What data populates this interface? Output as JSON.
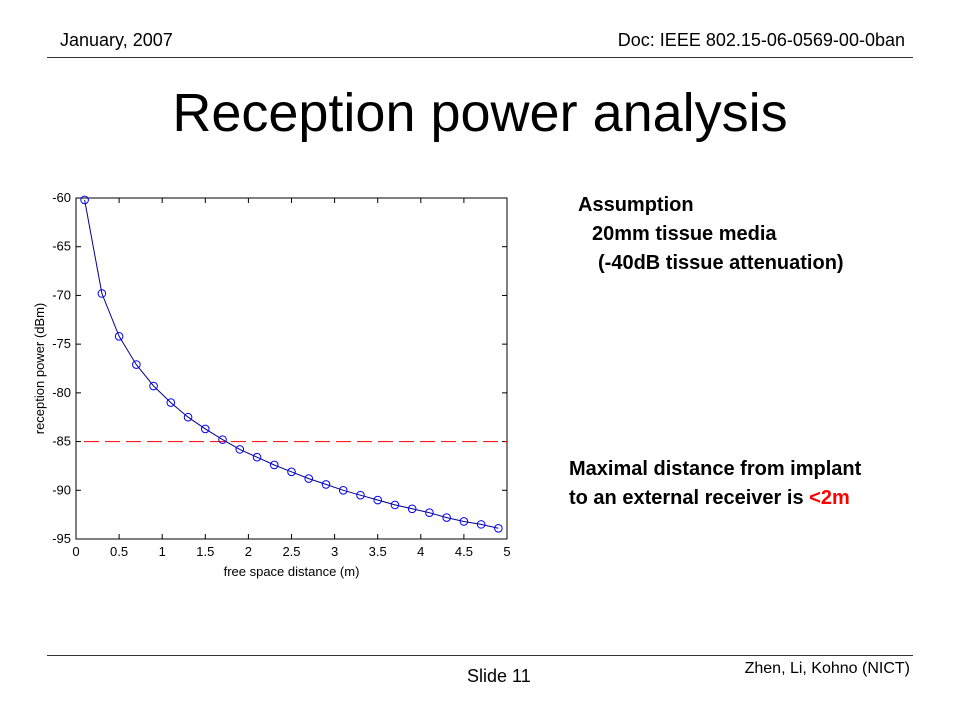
{
  "header": {
    "date": "January, 2007",
    "doc": "Doc: IEEE 802.15-06-0569-00-0ban"
  },
  "title": "Reception power analysis",
  "assumption": {
    "heading": "Assumption",
    "line1": "20mm tissue media",
    "line2": "(-40dB tissue attenuation)"
  },
  "conclusion": {
    "line1": "Maximal distance from implant",
    "line2_prefix": "to an external receiver is ",
    "line2_highlight": "<2m"
  },
  "footer": {
    "author": "Zhen, Li, Kohno (NICT)",
    "slide": "Slide 11"
  },
  "colors": {
    "curve": "#00008b",
    "marker": "#0000ff",
    "threshold": "#ff0000",
    "highlight": "#ff0000"
  },
  "chart_data": {
    "type": "line",
    "xlabel": "free space distance (m)",
    "ylabel": "reception power (dBm)",
    "xlim": [
      0,
      5
    ],
    "ylim": [
      -95,
      -60
    ],
    "xticks": [
      0,
      0.5,
      1,
      1.5,
      2,
      2.5,
      3,
      3.5,
      4,
      4.5,
      5
    ],
    "yticks": [
      -95,
      -90,
      -85,
      -80,
      -75,
      -70,
      -65,
      -60
    ],
    "grid": false,
    "legend": "none",
    "series": [
      {
        "marker": "circle",
        "x": [
          0.1,
          0.3,
          0.5,
          0.7,
          0.9,
          1.1,
          1.3,
          1.5,
          1.7,
          1.9,
          2.1,
          2.3,
          2.5,
          2.7,
          2.9,
          3.1,
          3.3,
          3.5,
          3.7,
          3.9,
          4.1,
          4.3,
          4.5,
          4.7,
          4.9
        ],
        "y": [
          -60.2,
          -69.8,
          -74.2,
          -77.1,
          -79.3,
          -81.0,
          -82.5,
          -83.7,
          -84.8,
          -85.8,
          -86.6,
          -87.4,
          -88.1,
          -88.8,
          -89.4,
          -90.0,
          -90.5,
          -91.0,
          -91.5,
          -91.9,
          -92.3,
          -92.8,
          -93.2,
          -93.5,
          -93.9
        ]
      }
    ],
    "reference_line": {
      "y": -85,
      "style": "dashed"
    }
  }
}
